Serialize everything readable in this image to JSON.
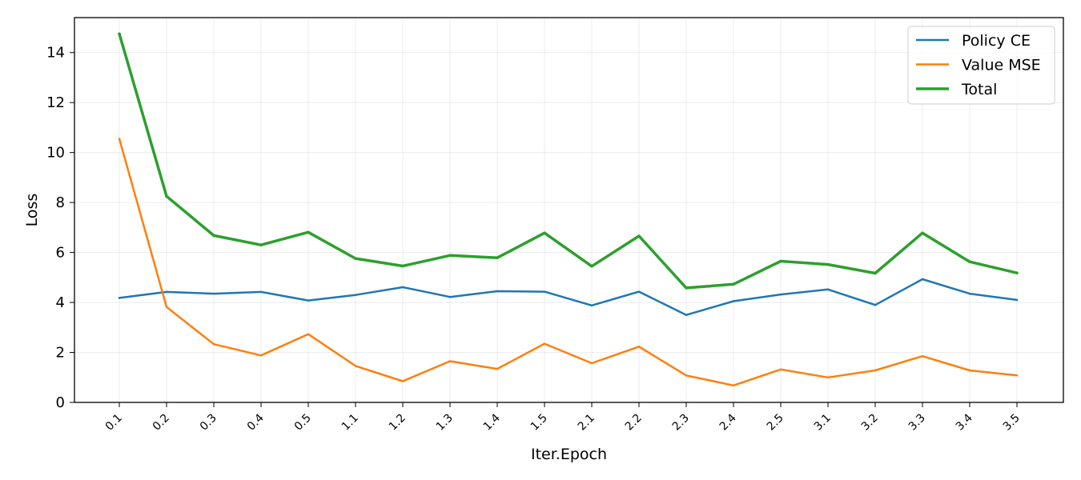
{
  "chart_data": {
    "type": "line",
    "xlabel": "Iter.Epoch",
    "ylabel": "Loss",
    "categories": [
      "0.1",
      "0.2",
      "0.3",
      "0.4",
      "0.5",
      "1.1",
      "1.2",
      "1.3",
      "1.4",
      "1.5",
      "2.1",
      "2.2",
      "2.3",
      "2.4",
      "2.5",
      "3.1",
      "3.2",
      "3.3",
      "3.4",
      "3.5"
    ],
    "y_ticks": [
      "0",
      "2",
      "4",
      "6",
      "8",
      "10",
      "12",
      "14"
    ],
    "ylim": [
      0,
      15.4
    ],
    "grid": true,
    "legend_position": "top-right",
    "series": [
      {
        "name": "Policy CE",
        "color": "#1f77b4",
        "width": 2.5,
        "values": [
          4.18,
          4.42,
          4.35,
          4.42,
          4.08,
          4.3,
          4.61,
          4.22,
          4.45,
          4.43,
          3.88,
          4.43,
          3.5,
          4.05,
          4.32,
          4.52,
          3.9,
          4.93,
          4.35,
          4.1
        ]
      },
      {
        "name": "Value MSE",
        "color": "#ff7f0e",
        "width": 2.5,
        "values": [
          10.55,
          3.82,
          2.33,
          1.88,
          2.73,
          1.46,
          0.85,
          1.65,
          1.34,
          2.35,
          1.57,
          2.23,
          1.08,
          0.68,
          1.32,
          1.0,
          1.28,
          1.85,
          1.28,
          1.08
        ]
      },
      {
        "name": "Total",
        "color": "#2ca02c",
        "width": 3.5,
        "values": [
          14.75,
          8.25,
          6.68,
          6.3,
          6.81,
          5.76,
          5.46,
          5.88,
          5.79,
          6.78,
          5.45,
          6.66,
          4.58,
          4.73,
          5.65,
          5.52,
          5.17,
          6.78,
          5.63,
          5.18
        ]
      }
    ]
  }
}
